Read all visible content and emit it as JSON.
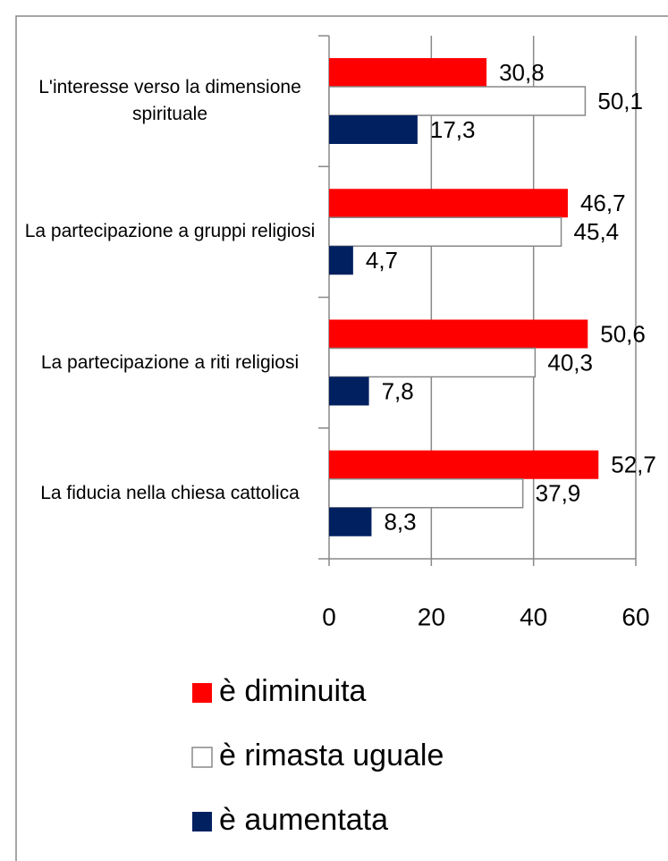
{
  "chart_data": {
    "type": "bar",
    "orientation": "horizontal",
    "categories": [
      "L'interesse verso la dimensione spirituale",
      "La partecipazione a gruppi religiosi",
      "La partecipazione a riti religiosi",
      "La fiducia nella chiesa cattolica"
    ],
    "series": [
      {
        "name": "è diminuita",
        "color": "#ff0000",
        "values": [
          30.8,
          46.7,
          50.6,
          52.7
        ],
        "value_labels": [
          "30,8",
          "46,7",
          "50,6",
          "52,7"
        ]
      },
      {
        "name": "è rimasta uguale",
        "color": "#ffffff",
        "values": [
          50.1,
          45.4,
          40.3,
          37.9
        ],
        "value_labels": [
          "50,1",
          "45,4",
          "40,3",
          "37,9"
        ]
      },
      {
        "name": "è aumentata",
        "color": "#002060",
        "values": [
          17.3,
          4.7,
          7.8,
          8.3
        ],
        "value_labels": [
          "17,3",
          "4,7",
          "7,8",
          "8,3"
        ]
      }
    ],
    "xlim": [
      0,
      60
    ],
    "xticks": [
      0,
      20,
      40,
      60
    ],
    "grid": true,
    "legend": "bottom"
  }
}
